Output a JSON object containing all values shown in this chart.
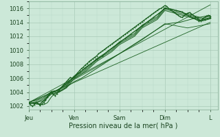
{
  "xlabel": "Pression niveau de la mer( hPa )",
  "background_color": "#cce8d8",
  "plot_bg_color": "#cce8d8",
  "grid_color_major": "#a0c4b0",
  "grid_color_minor": "#b8d8c8",
  "line_color": "#1a6020",
  "ylim": [
    1001.5,
    1017.0
  ],
  "yticks": [
    1002,
    1004,
    1006,
    1008,
    1010,
    1012,
    1014,
    1016
  ],
  "x_day_labels": [
    "Jeu",
    "Ven",
    "Sam",
    "Dim",
    "L"
  ],
  "x_day_positions": [
    0,
    24,
    48,
    72,
    96
  ],
  "xlim": [
    0,
    100
  ],
  "lines": [
    {
      "name": "main_noisy",
      "x": [
        0,
        1,
        2,
        3,
        4,
        5,
        6,
        7,
        8,
        9,
        10,
        11,
        12,
        13,
        14,
        15,
        16,
        17,
        18,
        19,
        20,
        21,
        22,
        23,
        24,
        25,
        26,
        27,
        28,
        29,
        30,
        31,
        32,
        33,
        34,
        35,
        36,
        37,
        38,
        39,
        40,
        41,
        42,
        43,
        44,
        45,
        46,
        47,
        48,
        49,
        50,
        51,
        52,
        53,
        54,
        55,
        56,
        57,
        58,
        59,
        60,
        61,
        62,
        63,
        64,
        65,
        66,
        67,
        68,
        69,
        70,
        71,
        72,
        73,
        74,
        75,
        76,
        77,
        78,
        79,
        80,
        81,
        82,
        83,
        84,
        85,
        86,
        87,
        88,
        89,
        90,
        91,
        92,
        93,
        94,
        95,
        96
      ],
      "y": [
        1002.5,
        1002.2,
        1002.0,
        1002.2,
        1002.6,
        1002.4,
        1002.1,
        1002.3,
        1002.5,
        1002.9,
        1003.3,
        1003.7,
        1004.0,
        1003.7,
        1003.5,
        1003.8,
        1004.2,
        1004.6,
        1004.9,
        1005.2,
        1005.5,
        1005.8,
        1006.1,
        1006.0,
        1006.2,
        1006.5,
        1006.8,
        1007.1,
        1007.4,
        1007.6,
        1007.9,
        1008.1,
        1008.4,
        1008.6,
        1008.8,
        1009.0,
        1009.2,
        1009.5,
        1009.7,
        1009.9,
        1010.1,
        1010.3,
        1010.5,
        1010.7,
        1010.9,
        1011.1,
        1011.3,
        1011.5,
        1011.7,
        1011.9,
        1012.1,
        1012.3,
        1012.5,
        1012.7,
        1012.9,
        1013.1,
        1013.3,
        1013.5,
        1013.7,
        1013.9,
        1014.1,
        1014.3,
        1014.5,
        1014.7,
        1014.9,
        1015.1,
        1015.3,
        1015.5,
        1015.7,
        1015.9,
        1016.0,
        1016.2,
        1016.4,
        1016.3,
        1016.0,
        1015.8,
        1015.6,
        1015.4,
        1015.2,
        1015.0,
        1014.8,
        1014.7,
        1014.9,
        1015.1,
        1015.3,
        1015.4,
        1015.2,
        1015.0,
        1014.8,
        1014.6,
        1014.4,
        1014.2,
        1014.5,
        1014.7,
        1014.9,
        1015.0,
        1014.8
      ],
      "lw": 0.9,
      "marker": "+",
      "markersize": 2.0
    },
    {
      "name": "smooth_main",
      "x": [
        0,
        3,
        6,
        9,
        12,
        15,
        18,
        21,
        24,
        27,
        30,
        33,
        36,
        39,
        42,
        45,
        48,
        51,
        54,
        57,
        60,
        63,
        66,
        69,
        72,
        75,
        78,
        81,
        84,
        87,
        90,
        93,
        96
      ],
      "y": [
        1002.5,
        1002.4,
        1002.3,
        1003.0,
        1004.0,
        1004.2,
        1004.8,
        1005.5,
        1006.2,
        1006.8,
        1007.5,
        1008.1,
        1008.7,
        1009.2,
        1009.9,
        1010.5,
        1011.1,
        1011.7,
        1012.3,
        1012.9,
        1013.5,
        1014.1,
        1014.7,
        1015.3,
        1016.0,
        1015.9,
        1015.7,
        1015.5,
        1015.0,
        1014.6,
        1014.2,
        1014.4,
        1014.6
      ],
      "lw": 1.0,
      "marker": "+",
      "markersize": 2.0
    },
    {
      "name": "envelope_top",
      "x": [
        0,
        96
      ],
      "y": [
        1002.5,
        1016.5
      ],
      "lw": 0.6,
      "marker": null,
      "markersize": 0
    },
    {
      "name": "envelope_bottom",
      "x": [
        0,
        96
      ],
      "y": [
        1002.5,
        1014.0
      ],
      "lw": 0.6,
      "marker": null,
      "markersize": 0
    },
    {
      "name": "cluster_a",
      "x": [
        0,
        4,
        8,
        12,
        16,
        20,
        24,
        28,
        32,
        36,
        40,
        44,
        48,
        52,
        56,
        60,
        64,
        68,
        72,
        76,
        80,
        84,
        88,
        92,
        96
      ],
      "y": [
        1002.6,
        1002.8,
        1003.2,
        1004.1,
        1004.3,
        1005.0,
        1006.3,
        1007.0,
        1007.8,
        1008.8,
        1009.5,
        1010.2,
        1011.2,
        1011.8,
        1012.4,
        1013.6,
        1014.2,
        1014.8,
        1016.1,
        1015.8,
        1015.5,
        1015.2,
        1014.9,
        1014.6,
        1014.9
      ],
      "lw": 0.7,
      "marker": null,
      "markersize": 0
    },
    {
      "name": "cluster_b",
      "x": [
        0,
        4,
        8,
        12,
        16,
        20,
        24,
        28,
        32,
        36,
        40,
        44,
        48,
        52,
        56,
        60,
        64,
        68,
        72,
        76,
        80,
        84,
        88,
        92,
        96
      ],
      "y": [
        1002.4,
        1002.6,
        1003.0,
        1003.9,
        1004.1,
        1004.8,
        1006.1,
        1006.8,
        1007.6,
        1008.6,
        1009.3,
        1010.0,
        1011.0,
        1011.6,
        1012.2,
        1013.4,
        1014.0,
        1014.6,
        1015.9,
        1015.6,
        1015.3,
        1015.0,
        1014.7,
        1014.4,
        1014.7
      ],
      "lw": 0.7,
      "marker": null,
      "markersize": 0
    },
    {
      "name": "cluster_c",
      "x": [
        0,
        4,
        8,
        12,
        16,
        20,
        24,
        28,
        32,
        36,
        40,
        44,
        48,
        52,
        56,
        60,
        64,
        68,
        72,
        76,
        80,
        84,
        88,
        92,
        96
      ],
      "y": [
        1002.3,
        1002.5,
        1002.8,
        1003.7,
        1004.0,
        1004.6,
        1005.9,
        1006.6,
        1007.4,
        1008.4,
        1009.1,
        1009.8,
        1010.8,
        1011.4,
        1012.0,
        1013.2,
        1013.8,
        1014.4,
        1015.7,
        1015.4,
        1015.1,
        1014.8,
        1014.5,
        1014.2,
        1014.5
      ],
      "lw": 0.7,
      "marker": null,
      "markersize": 0
    },
    {
      "name": "lower_line",
      "x": [
        0,
        12,
        24,
        36,
        48,
        60,
        72,
        84,
        96
      ],
      "y": [
        1002.5,
        1003.8,
        1005.8,
        1007.6,
        1009.5,
        1011.5,
        1013.8,
        1013.2,
        1013.8
      ],
      "lw": 0.6,
      "marker": null,
      "markersize": 0
    },
    {
      "name": "dip_line",
      "x": [
        0,
        4,
        8,
        10,
        12,
        14,
        16,
        18,
        20,
        22,
        24,
        28,
        32,
        36,
        40,
        44,
        48,
        52,
        56,
        60,
        64,
        68,
        72,
        76,
        80,
        84,
        88,
        92,
        96
      ],
      "y": [
        1002.5,
        1002.3,
        1002.2,
        1002.5,
        1003.3,
        1003.8,
        1004.0,
        1004.3,
        1004.7,
        1005.1,
        1005.5,
        1006.0,
        1006.7,
        1007.4,
        1008.1,
        1008.8,
        1009.5,
        1010.2,
        1010.9,
        1011.6,
        1012.3,
        1013.0,
        1013.7,
        1013.9,
        1014.0,
        1014.3,
        1014.6,
        1014.8,
        1015.0
      ],
      "lw": 0.7,
      "marker": null,
      "markersize": 0
    }
  ]
}
